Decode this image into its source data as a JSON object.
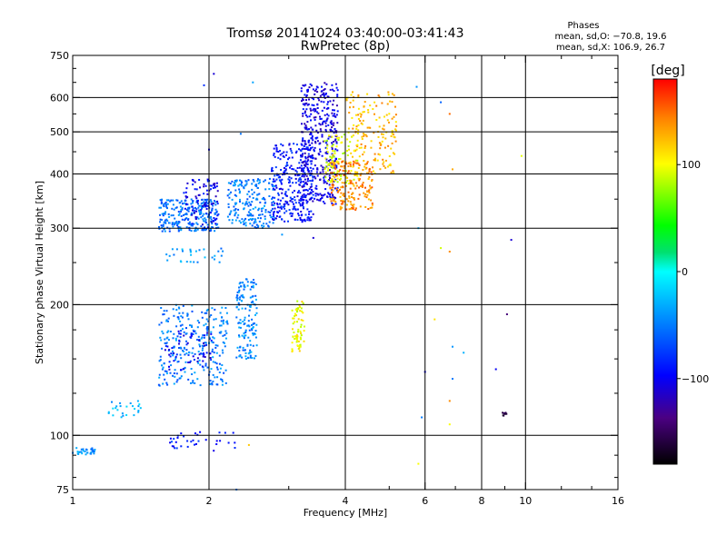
{
  "header": {
    "title_line1": "Tromsø 20141024 03:40:00-03:41:43",
    "title_line2": "RwPretec (8p)"
  },
  "phases_box": {
    "heading": "Phases",
    "o_line": "mean, sd,O: −70.8, 19.6",
    "x_line": "mean, sd,X: 106.9, 26.7"
  },
  "colorbar": {
    "label": "[deg]",
    "ticks": [
      {
        "value": 100,
        "label": "100"
      },
      {
        "value": 0,
        "label": "0"
      },
      {
        "value": -100,
        "label": "−100"
      }
    ],
    "range": [
      -180,
      180
    ]
  },
  "chart_data": {
    "type": "scatter",
    "xlabel": "Frequency [MHz]",
    "ylabel": "Stationary phase Virtual Height [km]",
    "x_scale": "log",
    "y_scale": "log",
    "xlim": [
      1,
      16
    ],
    "ylim": [
      75,
      750
    ],
    "grid": true,
    "x_ticks": [
      {
        "value": 1,
        "label": "1"
      },
      {
        "value": 2,
        "label": "2"
      },
      {
        "value": 4,
        "label": "4"
      },
      {
        "value": 6,
        "label": "6"
      },
      {
        "value": 8,
        "label": "8"
      },
      {
        "value": 10,
        "label": "10"
      },
      {
        "value": 16,
        "label": "16"
      }
    ],
    "x_gridlines": [
      2,
      4,
      6,
      8,
      10
    ],
    "y_ticks": [
      {
        "value": 75,
        "label": "75"
      },
      {
        "value": 100,
        "label": "100"
      },
      {
        "value": 200,
        "label": "200"
      },
      {
        "value": 300,
        "label": "300"
      },
      {
        "value": 400,
        "label": "400"
      },
      {
        "value": 500,
        "label": "500"
      },
      {
        "value": 600,
        "label": "600"
      },
      {
        "value": 750,
        "label": "750"
      }
    ],
    "y_gridlines": [
      100,
      200,
      300,
      400,
      500,
      600
    ],
    "clusters": [
      {
        "f": [
          1.0,
          1.12
        ],
        "h": [
          90,
          94
        ],
        "phase": -40,
        "n": 30
      },
      {
        "f": [
          1.2,
          1.45
        ],
        "h": [
          110,
          120
        ],
        "phase": -30,
        "n": 25
      },
      {
        "f": [
          1.55,
          2.2
        ],
        "h": [
          130,
          200
        ],
        "phase": -50,
        "n": 280
      },
      {
        "f": [
          1.6,
          2.05
        ],
        "h": [
          140,
          175
        ],
        "phase": -95,
        "n": 60
      },
      {
        "f": [
          2.3,
          2.55
        ],
        "h": [
          150,
          230
        ],
        "phase": -45,
        "n": 150
      },
      {
        "f": [
          1.55,
          2.1
        ],
        "h": [
          295,
          350
        ],
        "phase": -55,
        "n": 260
      },
      {
        "f": [
          1.75,
          2.1
        ],
        "h": [
          300,
          390
        ],
        "phase": -100,
        "n": 80
      },
      {
        "f": [
          2.2,
          2.8
        ],
        "h": [
          300,
          390
        ],
        "phase": -50,
        "n": 200
      },
      {
        "f": [
          2.75,
          3.4
        ],
        "h": [
          310,
          470
        ],
        "phase": -90,
        "n": 300
      },
      {
        "f": [
          3.2,
          3.85
        ],
        "h": [
          340,
          650
        ],
        "phase": -105,
        "n": 420
      },
      {
        "f": [
          3.7,
          4.6
        ],
        "h": [
          330,
          430
        ],
        "phase": 140,
        "n": 200
      },
      {
        "f": [
          4.0,
          5.2
        ],
        "h": [
          400,
          620
        ],
        "phase": 125,
        "n": 170
      },
      {
        "f": [
          3.6,
          4.3
        ],
        "h": [
          380,
          500
        ],
        "phase": 95,
        "n": 90
      },
      {
        "f": [
          3.05,
          3.25
        ],
        "h": [
          155,
          205
        ],
        "phase": 100,
        "n": 70
      },
      {
        "f": [
          1.6,
          2.15
        ],
        "h": [
          250,
          270
        ],
        "phase": -40,
        "n": 30
      },
      {
        "f": [
          1.6,
          2.3
        ],
        "h": [
          92,
          102
        ],
        "phase": -85,
        "n": 35
      },
      {
        "f": [
          8.9,
          9.1
        ],
        "h": [
          111,
          113
        ],
        "phase": -160,
        "n": 8
      }
    ],
    "points": [
      {
        "f": 1.95,
        "h": 640,
        "phase": -80
      },
      {
        "f": 2.05,
        "h": 680,
        "phase": -110
      },
      {
        "f": 2.5,
        "h": 650,
        "phase": -35
      },
      {
        "f": 2.0,
        "h": 455,
        "phase": -100
      },
      {
        "f": 2.35,
        "h": 495,
        "phase": -55
      },
      {
        "f": 2.9,
        "h": 290,
        "phase": -40
      },
      {
        "f": 3.4,
        "h": 285,
        "phase": -110
      },
      {
        "f": 5.8,
        "h": 300,
        "phase": -30
      },
      {
        "f": 6.5,
        "h": 270,
        "phase": 90
      },
      {
        "f": 6.8,
        "h": 265,
        "phase": 140
      },
      {
        "f": 6.9,
        "h": 410,
        "phase": 130
      },
      {
        "f": 6.5,
        "h": 585,
        "phase": -60
      },
      {
        "f": 6.8,
        "h": 550,
        "phase": 150
      },
      {
        "f": 6.3,
        "h": 185,
        "phase": 110
      },
      {
        "f": 6.9,
        "h": 160,
        "phase": -40
      },
      {
        "f": 7.3,
        "h": 155,
        "phase": -30
      },
      {
        "f": 6.9,
        "h": 135,
        "phase": -50
      },
      {
        "f": 6.8,
        "h": 120,
        "phase": 140
      },
      {
        "f": 6.8,
        "h": 106,
        "phase": 100
      },
      {
        "f": 5.9,
        "h": 110,
        "phase": -50
      },
      {
        "f": 5.8,
        "h": 86,
        "phase": 100
      },
      {
        "f": 6.0,
        "h": 140,
        "phase": -100
      },
      {
        "f": 8.6,
        "h": 142,
        "phase": -100
      },
      {
        "f": 9.1,
        "h": 190,
        "phase": -140
      },
      {
        "f": 9.3,
        "h": 282,
        "phase": -110
      },
      {
        "f": 9.8,
        "h": 440,
        "phase": 95
      },
      {
        "f": 9.0,
        "h": 112,
        "phase": -160
      },
      {
        "f": 5.75,
        "h": 635,
        "phase": -40
      },
      {
        "f": 2.45,
        "h": 95,
        "phase": 120
      },
      {
        "f": 2.3,
        "h": 75,
        "phase": -50
      }
    ]
  }
}
